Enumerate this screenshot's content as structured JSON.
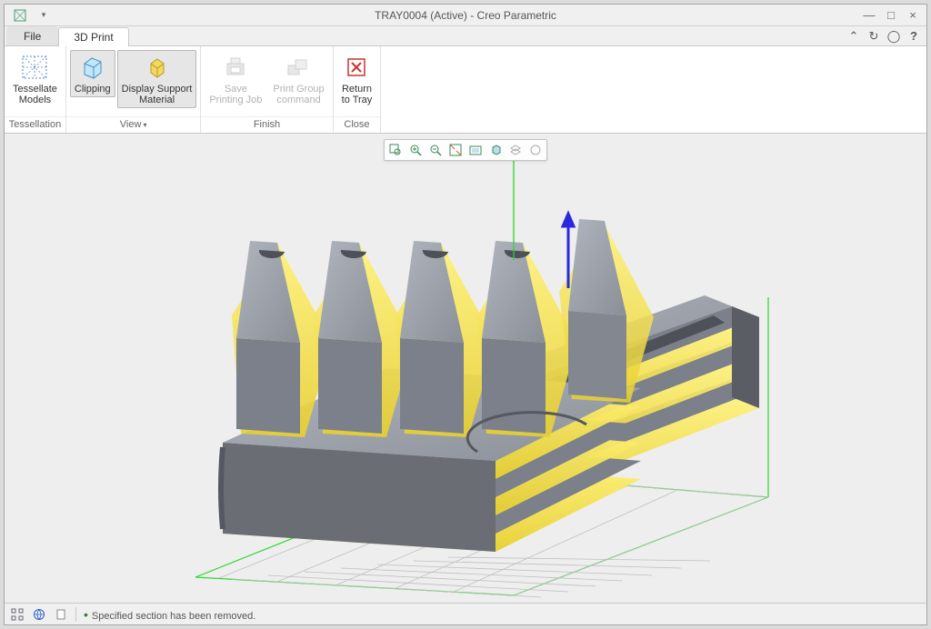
{
  "window": {
    "title": "TRAY0004 (Active) - Creo Parametric"
  },
  "tabs": {
    "file": "File",
    "active": "3D Print"
  },
  "ribbon": {
    "groups": [
      {
        "label": "Tessellation",
        "dropdown": false,
        "items": [
          {
            "id": "tessellate",
            "label": "Tessellate\nModels",
            "icon": "tessellate",
            "disabled": false,
            "pressed": false
          }
        ]
      },
      {
        "label": "View",
        "dropdown": true,
        "items": [
          {
            "id": "clipping",
            "label": "Clipping",
            "icon": "clipping",
            "disabled": false,
            "pressed": true
          },
          {
            "id": "display-support",
            "label": "Display Support\nMaterial",
            "icon": "support",
            "disabled": false,
            "pressed": true
          }
        ]
      },
      {
        "label": "Finish",
        "dropdown": false,
        "items": [
          {
            "id": "save-job",
            "label": "Save\nPrinting Job",
            "icon": "save",
            "disabled": true,
            "pressed": false
          },
          {
            "id": "print-group",
            "label": "Print Group\ncommand",
            "icon": "printgroup",
            "disabled": true,
            "pressed": false
          }
        ]
      },
      {
        "label": "Close",
        "dropdown": false,
        "items": [
          {
            "id": "return",
            "label": "Return\nto Tray",
            "icon": "close",
            "disabled": false,
            "pressed": false
          }
        ]
      }
    ]
  },
  "viewToolbar": {
    "icons": [
      "zoom-window",
      "zoom-in",
      "zoom-out",
      "refit",
      "named-views",
      "saved-orient",
      "layers",
      "annotation"
    ]
  },
  "status": {
    "message": "Specified section has been removed."
  },
  "scene": {
    "background": "#eeeeee",
    "grid_color": "#bfbfbf",
    "buildbox_color": "#2fd62f",
    "axis_z_color": "#2828e0",
    "part_top_color": "#a0a6af",
    "part_side_color": "#7b808a",
    "part_dark_color": "#63666d",
    "support_color": "#f2e24a",
    "support_color_light": "#fff27a"
  }
}
